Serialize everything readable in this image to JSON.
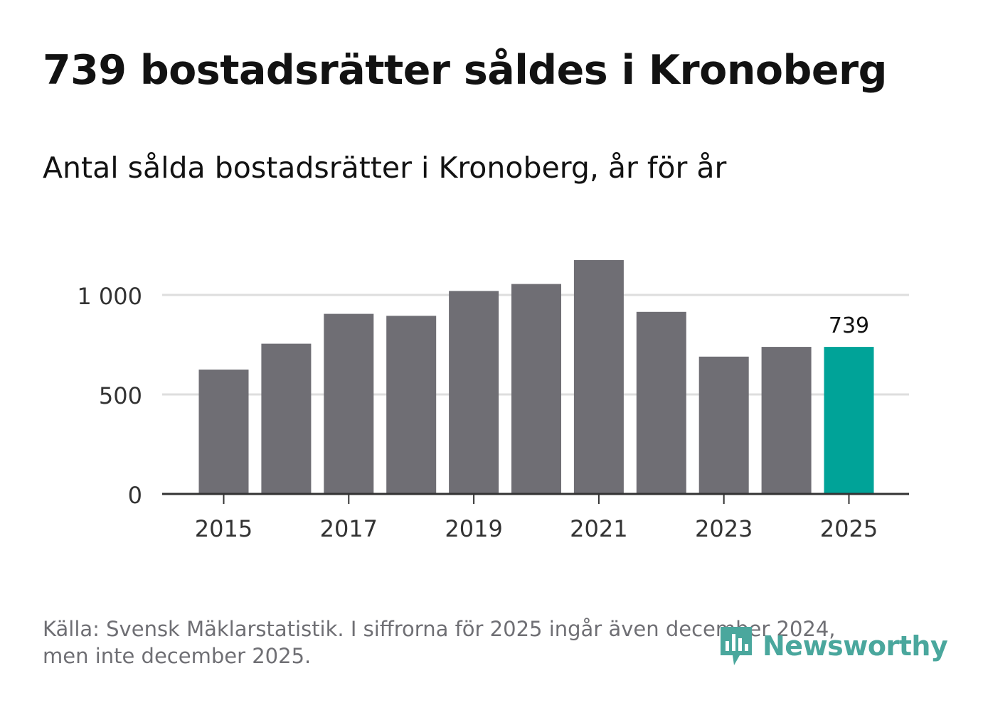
{
  "title": "739 bostadsrätter såldes i Kronoberg",
  "subtitle": "Antal sålda bostadsrätter i Kronoberg, år för år",
  "source": {
    "line1": "Källa: Svensk Mäklarstatistik. I siffrorna för 2025 ingår även december 2024,",
    "line2": "men inte december 2025."
  },
  "brand": {
    "name": "Newsworthy",
    "icon": "newsworthy-logo-icon"
  },
  "colors": {
    "bar": "#6f6e74",
    "highlight": "#00a398",
    "grid": "#dedede",
    "axis": "#333333",
    "text": "#121212",
    "muted": "#6f6f74",
    "brand": "#4aa79d"
  },
  "chart_data": {
    "type": "bar",
    "title": "739 bostadsrätter såldes i Kronoberg",
    "subtitle": "Antal sålda bostadsrätter i Kronoberg, år för år",
    "xlabel": "",
    "ylabel": "",
    "categories": [
      "2015",
      "2016",
      "2017",
      "2018",
      "2019",
      "2020",
      "2021",
      "2022",
      "2023",
      "2024",
      "2025"
    ],
    "values": [
      625,
      755,
      905,
      895,
      1020,
      1055,
      1175,
      915,
      690,
      739,
      739
    ],
    "highlight_index": 10,
    "highlight_label": "739",
    "ylim": [
      0,
      1250
    ],
    "yticks": [
      0,
      500,
      1000
    ],
    "ytick_labels": [
      "0",
      "500",
      "1 000"
    ],
    "xtick_labels": [
      "2015",
      "2017",
      "2019",
      "2021",
      "2023",
      "2025"
    ],
    "grid": true,
    "legend": "none"
  }
}
